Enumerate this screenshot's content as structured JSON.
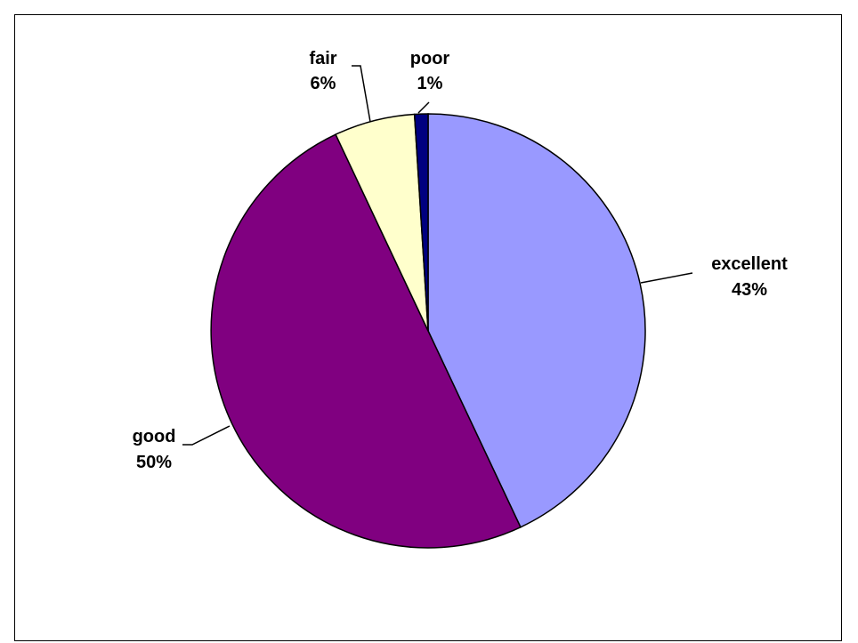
{
  "chart_data": {
    "type": "pie",
    "slices": [
      {
        "label": "excellent",
        "value": 43,
        "display": "43%",
        "color": "#9999ff"
      },
      {
        "label": "good",
        "value": 50,
        "display": "50%",
        "color": "#800080"
      },
      {
        "label": "fair",
        "value": 6,
        "display": "6%",
        "color": "#ffffcc"
      },
      {
        "label": "poor",
        "value": 1,
        "display": "1%",
        "color": "#000080"
      }
    ],
    "start": "12 o'clock",
    "direction": "clockwise",
    "legend": "none"
  }
}
